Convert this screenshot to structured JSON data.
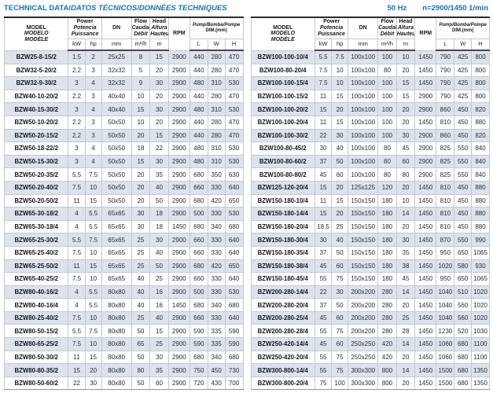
{
  "page": {
    "title_regular": "TECHNICAL DATA/",
    "title_italic": "DATOS TÉCNICOS/DONNÉES TECHNIQUES",
    "frequency": "50 Hz",
    "speed": "n=2900/1450 1/min"
  },
  "colors": {
    "accent_blue": "#1a72ae",
    "row_shade": "#dce3ec"
  },
  "table_header": {
    "model_1": "MODEL",
    "model_2": "MODELO",
    "model_3": "MODÈLE",
    "power_1": "Power",
    "power_2": "Potencia",
    "power_3": "Puissance",
    "unit_kw": "kW",
    "unit_hp": "hp",
    "dn": "DN",
    "unit_mm": "mm",
    "flow_1": "Flow",
    "flow_2": "Caudal",
    "flow_3": "Débit",
    "unit_flow": "m³/h",
    "head_1": "Head",
    "head_2": "Altura",
    "head_3": "Hauteur",
    "unit_head": "m",
    "rpm": "RPM",
    "dim_1": "Pump/Bomba/Pompe",
    "dim_2": "DIM.(mm)",
    "unit_l": "L",
    "unit_w": "W",
    "unit_h": "H"
  },
  "left_table": {
    "rows": [
      [
        "BZW25-8-15/2",
        "1.5",
        "2",
        "25x25",
        "8",
        "15",
        "2900",
        "440",
        "280",
        "470"
      ],
      [
        "BZW32-5-20/2",
        "2.2",
        "3",
        "32x32",
        "5",
        "20",
        "2900",
        "440",
        "280",
        "470"
      ],
      [
        "BZW32-9-30/2",
        "3",
        "4",
        "32x32",
        "9",
        "30",
        "2900",
        "480",
        "310",
        "530"
      ],
      [
        "BZW40-10-20/2",
        "2.2",
        "3",
        "40x40",
        "10",
        "20",
        "2900",
        "440",
        "280",
        "470"
      ],
      [
        "BZW40-15-30/2",
        "3",
        "4",
        "40x40",
        "15",
        "30",
        "2900",
        "480",
        "310",
        "530"
      ],
      [
        "BZW50-10-20/2",
        "2.2",
        "3",
        "50x50",
        "10",
        "20",
        "2900",
        "440",
        "280",
        "470"
      ],
      [
        "BZW50-20-15/2",
        "2.2",
        "3",
        "50x50",
        "20",
        "15",
        "2900",
        "440",
        "280",
        "470"
      ],
      [
        "BZW50-18-22/2",
        "3",
        "4",
        "50x50",
        "18",
        "22",
        "2900",
        "480",
        "310",
        "530"
      ],
      [
        "BZW50-15-30/2",
        "3",
        "4",
        "50x50",
        "15",
        "30",
        "2900",
        "480",
        "310",
        "530"
      ],
      [
        "BZW50-20-35/2",
        "5.5",
        "7.5",
        "50x50",
        "20",
        "35",
        "2900",
        "680",
        "350",
        "630"
      ],
      [
        "BZW50-20-40/2",
        "7.5",
        "10",
        "50x50",
        "20",
        "40",
        "2900",
        "660",
        "330",
        "640"
      ],
      [
        "BZW50-20-50/2",
        "11",
        "15",
        "50x50",
        "20",
        "50",
        "2900",
        "680",
        "420",
        "650"
      ],
      [
        "BZW65-30-18/2",
        "4",
        "5.5",
        "65x65",
        "30",
        "18",
        "2900",
        "500",
        "330",
        "530"
      ],
      [
        "BZW65-30-18/4",
        "4",
        "5.5",
        "65x65",
        "30",
        "18",
        "1450",
        "680",
        "340",
        "680"
      ],
      [
        "BZW65-25-30/2",
        "5.5",
        "7.5",
        "65x65",
        "25",
        "30",
        "2900",
        "660",
        "330",
        "640"
      ],
      [
        "BZW65-25-40/2",
        "7.5",
        "10",
        "65x65",
        "25",
        "40",
        "2900",
        "660",
        "330",
        "640"
      ],
      [
        "BZW65-25-50/2",
        "11",
        "15",
        "65x65",
        "25",
        "50",
        "2900",
        "680",
        "420",
        "650"
      ],
      [
        "BZW65-40-25/2",
        "7.5",
        "10",
        "65x65",
        "40",
        "25",
        "2900",
        "660",
        "330",
        "640"
      ],
      [
        "BZW80-40-16/2",
        "4",
        "5.5",
        "80x80",
        "40",
        "16",
        "2900",
        "500",
        "330",
        "530"
      ],
      [
        "BZW80-40-16/4",
        "4",
        "5.5",
        "80x80",
        "40",
        "16",
        "1450",
        "680",
        "340",
        "680"
      ],
      [
        "BZW80-25-40/2",
        "7.5",
        "10",
        "80x80",
        "25",
        "40",
        "2900",
        "660",
        "330",
        "640"
      ],
      [
        "BZW80-50-15/2",
        "5.5",
        "7.5",
        "80x80",
        "50",
        "15",
        "2900",
        "590",
        "335",
        "590"
      ],
      [
        "BZW80-65-25/2",
        "7.5",
        "10",
        "80x80",
        "65",
        "25",
        "2900",
        "590",
        "335",
        "590"
      ],
      [
        "BZW80-50-30/2",
        "11",
        "15",
        "80x80",
        "50",
        "30",
        "2900",
        "680",
        "340",
        "680"
      ],
      [
        "BZW80-80-35/2",
        "15",
        "20",
        "80x80",
        "80",
        "35",
        "2900",
        "750",
        "450",
        "730"
      ],
      [
        "BZW80-50-60/2",
        "22",
        "30",
        "80x80",
        "50",
        "60",
        "2900",
        "720",
        "430",
        "700"
      ]
    ]
  },
  "right_table": {
    "rows": [
      [
        "BZW100-100-10/4",
        "5.5",
        "7.5",
        "100x100",
        "100",
        "10",
        "1450",
        "790",
        "425",
        "800"
      ],
      [
        "BZW100-80-20/4",
        "7.5",
        "10",
        "100x100",
        "80",
        "20",
        "1450",
        "790",
        "425",
        "800"
      ],
      [
        "BZW100-100-15/4",
        "7.5",
        "10",
        "100x100",
        "100",
        "15",
        "1450",
        "790",
        "425",
        "800"
      ],
      [
        "BZW100-100-15/2",
        "11",
        "15",
        "100x100",
        "100",
        "15",
        "2900",
        "790",
        "425",
        "800"
      ],
      [
        "BZW100-100-20/2",
        "15",
        "20",
        "100x100",
        "100",
        "20",
        "2900",
        "860",
        "450",
        "820"
      ],
      [
        "BZW100-100-20/4",
        "11",
        "15",
        "100x100",
        "100",
        "20",
        "1450",
        "810",
        "450",
        "880"
      ],
      [
        "BZW100-100-30/2",
        "22",
        "30",
        "100x100",
        "100",
        "30",
        "2900",
        "860",
        "450",
        "820"
      ],
      [
        "BZW100-80-45/2",
        "30",
        "40",
        "100x100",
        "80",
        "45",
        "2900",
        "825",
        "550",
        "840"
      ],
      [
        "BZW100-80-60/2",
        "37",
        "50",
        "100x100",
        "80",
        "60",
        "2900",
        "825",
        "550",
        "840"
      ],
      [
        "BZW100-80-80/2",
        "45",
        "60",
        "100x100",
        "80",
        "80",
        "2900",
        "825",
        "550",
        "840"
      ],
      [
        "BZW125-120-20/4",
        "15",
        "20",
        "125x125",
        "120",
        "20",
        "1450",
        "810",
        "450",
        "880"
      ],
      [
        "BZW150-180-10/4",
        "11",
        "15",
        "150x150",
        "180",
        "10",
        "1450",
        "810",
        "450",
        "880"
      ],
      [
        "BZW150-180-14/4",
        "15",
        "20",
        "150x150",
        "180",
        "14",
        "1450",
        "810",
        "450",
        "880"
      ],
      [
        "BZW150-180-20/4",
        "18.5",
        "25",
        "150x150",
        "180",
        "20",
        "1450",
        "810",
        "450",
        "880"
      ],
      [
        "BZW150-180-30/4",
        "30",
        "40",
        "150x150",
        "180",
        "30",
        "1450",
        "870",
        "550",
        "990"
      ],
      [
        "BZW150-180-35/4",
        "37",
        "50",
        "150x150",
        "180",
        "35",
        "1450",
        "950",
        "650",
        "1065"
      ],
      [
        "BZW150-180-38/4",
        "45",
        "60",
        "150x150",
        "180",
        "38",
        "1450",
        "1020",
        "580",
        "930"
      ],
      [
        "BZW150-180-45/4",
        "55",
        "75",
        "150x150",
        "180",
        "45",
        "1450",
        "950",
        "650",
        "1065"
      ],
      [
        "BZW200-280-14/4",
        "22",
        "30",
        "200x200",
        "280",
        "14",
        "1450",
        "1040",
        "510",
        "1020"
      ],
      [
        "BZW200-280-20/4",
        "37",
        "50",
        "200x200",
        "280",
        "20",
        "1450",
        "1040",
        "560",
        "1020"
      ],
      [
        "BZW200-280-25/4",
        "45",
        "60",
        "200x200",
        "280",
        "25",
        "1450",
        "1040",
        "560",
        "1020"
      ],
      [
        "BZW200-280-28/4",
        "55",
        "75",
        "200x200",
        "280",
        "28",
        "1450",
        "1230",
        "520",
        "1030"
      ],
      [
        "BZW250-420-14/4",
        "45",
        "60",
        "250x250",
        "420",
        "14",
        "1450",
        "1060",
        "680",
        "1100"
      ],
      [
        "BZW250-420-20/4",
        "55",
        "75",
        "250x250",
        "420",
        "20",
        "1450",
        "1060",
        "680",
        "1100"
      ],
      [
        "BZW300-800-14/4",
        "55",
        "75",
        "300x300",
        "800",
        "14",
        "1450",
        "1500",
        "680",
        "1350"
      ],
      [
        "BZW300-800-20/4",
        "75",
        "100",
        "300x300",
        "800",
        "20",
        "1450",
        "1500",
        "680",
        "1350"
      ]
    ]
  }
}
